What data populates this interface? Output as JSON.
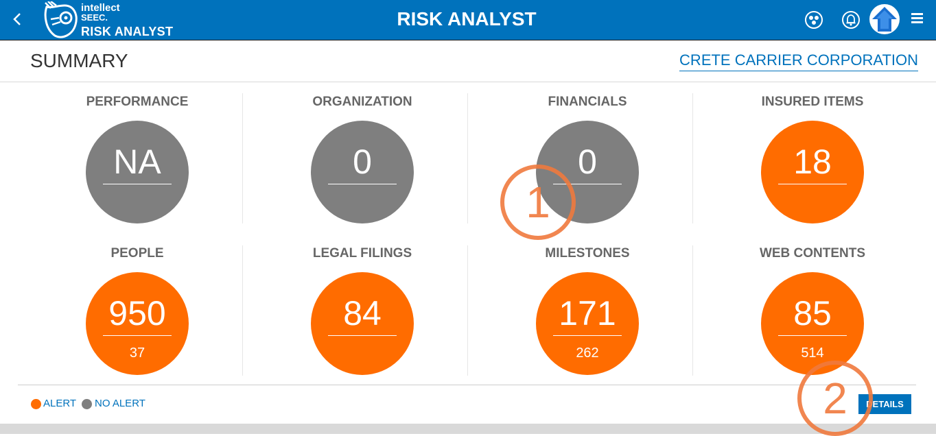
{
  "app": {
    "brand_line1": "intellect",
    "brand_line2": "SEEC.",
    "brand_line3": "RISK ANALYST",
    "title": "RISK ANALYST",
    "icons": {
      "back": "chevron-left-icon",
      "network": "network-users-icon",
      "notifications": "bell-icon",
      "home": "home-arrow-icon",
      "menu": "hamburger-menu-icon"
    }
  },
  "header": {
    "title": "SUMMARY",
    "company": "CRETE CARRIER CORPORATION"
  },
  "cards": [
    {
      "title": "PERFORMANCE",
      "value": "NA",
      "sub": "",
      "status": "no-alert"
    },
    {
      "title": "ORGANIZATION",
      "value": "0",
      "sub": "",
      "status": "no-alert"
    },
    {
      "title": "FINANCIALS",
      "value": "0",
      "sub": "",
      "status": "no-alert"
    },
    {
      "title": "INSURED ITEMS",
      "value": "18",
      "sub": "",
      "status": "alert"
    },
    {
      "title": "PEOPLE",
      "value": "950",
      "sub": "37",
      "status": "alert"
    },
    {
      "title": "LEGAL FILINGS",
      "value": "84",
      "sub": "",
      "status": "alert"
    },
    {
      "title": "MILESTONES",
      "value": "171",
      "sub": "262",
      "status": "alert"
    },
    {
      "title": "WEB CONTENTS",
      "value": "85",
      "sub": "514",
      "status": "alert"
    }
  ],
  "legend": {
    "alert_label": "ALERT",
    "no_alert_label": "NO ALERT",
    "alert_color": "#ff6c00",
    "no_alert_color": "#7f7f7f"
  },
  "details_label": "DETAILS",
  "annotations": [
    "1",
    "2"
  ],
  "colors": {
    "brand_blue": "#0072bc",
    "annotation": "#f07a3e"
  }
}
